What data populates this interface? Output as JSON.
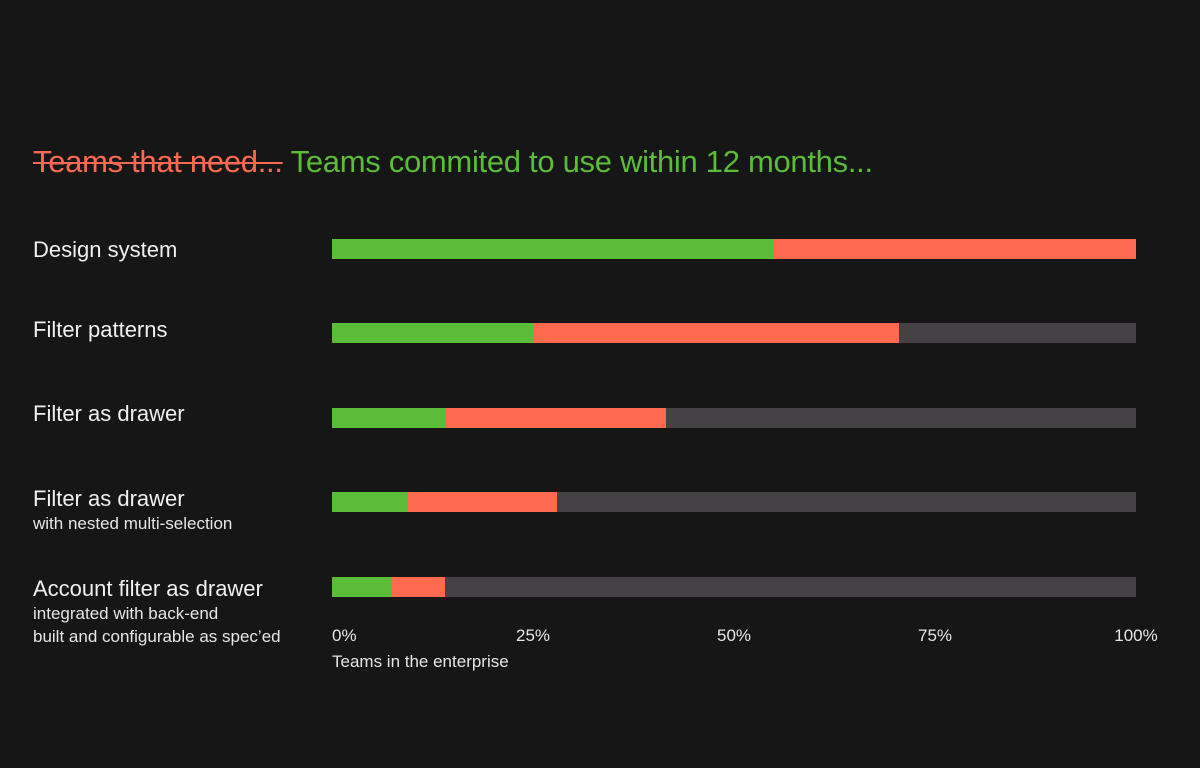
{
  "colors": {
    "background": "#171617",
    "committed": "#5bbd37",
    "need": "#fd6a4f",
    "remaining": "#444245",
    "text": "#ececec"
  },
  "header": {
    "struck_text": "Teams that need...",
    "main_text": "Teams commited to use within 12 months..."
  },
  "chart_data": {
    "type": "bar",
    "orientation": "horizontal",
    "stacked": true,
    "categories": [
      "Design system",
      "Filter patterns",
      "Filter as drawer",
      "Filter as drawer with nested multi-selection",
      "Account filter as drawer integrated with back-end built and configurable as spec'ed"
    ],
    "rows": [
      {
        "label": "Design system",
        "sublabel": "",
        "committed": 55,
        "need": 45
      },
      {
        "label": "Filter patterns",
        "sublabel": "",
        "committed": 25,
        "need": 45.5
      },
      {
        "label": "Filter as drawer",
        "sublabel": "",
        "committed": 14,
        "need": 27.5
      },
      {
        "label": "Filter as drawer",
        "sublabel": "with nested multi-selection",
        "committed": 9.5,
        "need": 18.5
      },
      {
        "label": "Account filter as drawer",
        "sublabel": "integrated with back-end\nbuilt and configurable as spec’ed",
        "committed": 7.5,
        "need": 6.5
      }
    ],
    "xlim": [
      0,
      100
    ],
    "x_ticks": [
      "0%",
      "25%",
      "50%",
      "75%",
      "100%"
    ],
    "xlabel": "Teams in the enterprise",
    "grid": false
  }
}
